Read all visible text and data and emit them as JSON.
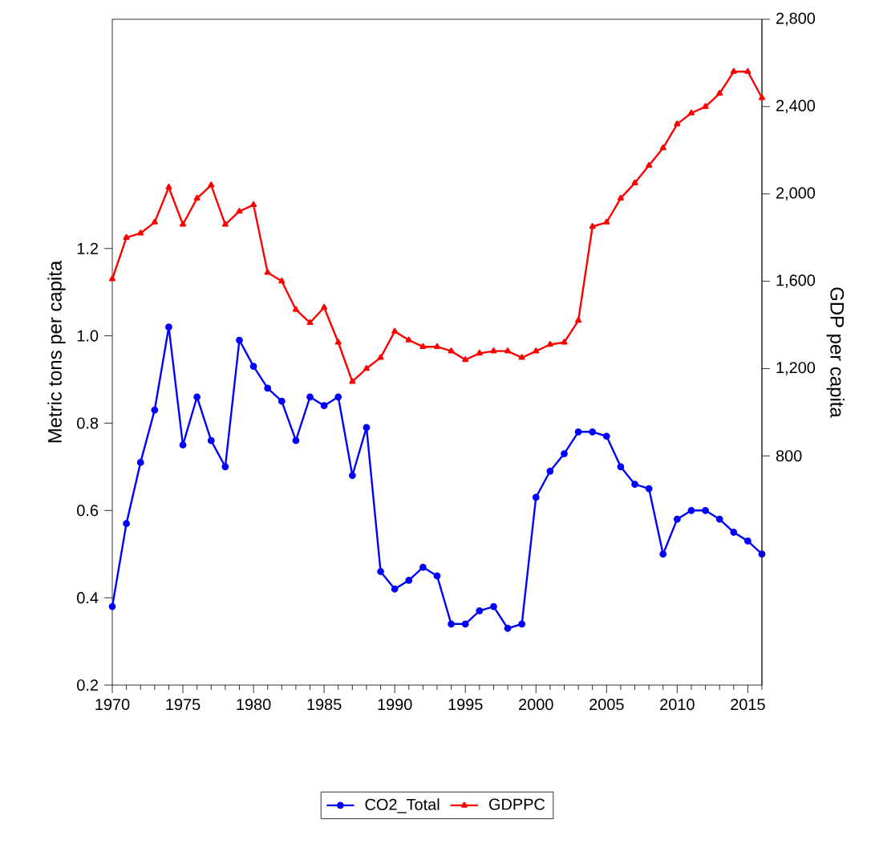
{
  "chart_data": {
    "type": "line",
    "ylabel": "Metric tons per capita",
    "y2label": "GDP per capita",
    "x": [
      1970,
      1971,
      1972,
      1973,
      1974,
      1975,
      1976,
      1977,
      1978,
      1979,
      1980,
      1981,
      1982,
      1983,
      1984,
      1985,
      1986,
      1987,
      1988,
      1989,
      1990,
      1991,
      1992,
      1993,
      1994,
      1995,
      1996,
      1997,
      1998,
      1999,
      2000,
      2001,
      2002,
      2003,
      2004,
      2005,
      2006,
      2007,
      2008,
      2009,
      2010,
      2011,
      2012,
      2013,
      2014,
      2015,
      2016
    ],
    "series": [
      {
        "name": "CO2_Total",
        "color": "#0000ff",
        "marker": "circle",
        "axis": "y",
        "values": [
          0.38,
          0.57,
          0.71,
          0.83,
          1.02,
          0.75,
          0.86,
          0.76,
          0.7,
          0.99,
          0.93,
          0.88,
          0.85,
          0.76,
          0.86,
          0.84,
          0.86,
          0.68,
          0.79,
          0.46,
          0.42,
          0.44,
          0.47,
          0.45,
          0.34,
          0.34,
          0.37,
          0.38,
          0.33,
          0.34,
          0.63,
          0.69,
          0.73,
          0.78,
          0.78,
          0.77,
          0.7,
          0.66,
          0.65,
          0.5,
          0.58,
          0.6,
          0.6,
          0.58,
          0.55,
          0.53,
          0.5
        ]
      },
      {
        "name": "GDPPC",
        "color": "#ff0000",
        "marker": "triangle",
        "axis": "y2",
        "values": [
          1610,
          1800,
          1820,
          1870,
          2030,
          1860,
          1980,
          2040,
          1860,
          1920,
          1950,
          1640,
          1600,
          1470,
          1410,
          1480,
          1320,
          1140,
          1200,
          1250,
          1370,
          1330,
          1300,
          1300,
          1280,
          1240,
          1270,
          1280,
          1280,
          1250,
          1280,
          1310,
          1320,
          1420,
          1850,
          1870,
          1980,
          2050,
          2130,
          2210,
          2320,
          2370,
          2400,
          2460,
          2560,
          2560,
          2440
        ]
      }
    ],
    "xlim": [
      1970,
      2016
    ],
    "xticks": [
      1970,
      {
        "value": 1971,
        "label": null
      },
      {
        "value": 1972,
        "label": null
      },
      {
        "value": 1973,
        "label": null
      },
      {
        "value": 1974,
        "label": null
      },
      1975,
      {
        "value": 1976,
        "label": null
      },
      {
        "value": 1977,
        "label": null
      },
      {
        "value": 1978,
        "label": null
      },
      {
        "value": 1979,
        "label": null
      },
      1980,
      {
        "value": 1981,
        "label": null
      },
      {
        "value": 1982,
        "label": null
      },
      {
        "value": 1983,
        "label": null
      },
      {
        "value": 1984,
        "label": null
      },
      1985,
      {
        "value": 1986,
        "label": null
      },
      {
        "value": 1987,
        "label": null
      },
      {
        "value": 1988,
        "label": null
      },
      {
        "value": 1989,
        "label": null
      },
      1990,
      {
        "value": 1991,
        "label": null
      },
      {
        "value": 1992,
        "label": null
      },
      {
        "value": 1993,
        "label": null
      },
      {
        "value": 1994,
        "label": null
      },
      1995,
      {
        "value": 1996,
        "label": null
      },
      {
        "value": 1997,
        "label": null
      },
      {
        "value": 1998,
        "label": null
      },
      {
        "value": 1999,
        "label": null
      },
      2000,
      {
        "value": 2001,
        "label": null
      },
      {
        "value": 2002,
        "label": null
      },
      {
        "value": 2003,
        "label": null
      },
      {
        "value": 2004,
        "label": null
      },
      2005,
      {
        "value": 2006,
        "label": null
      },
      {
        "value": 2007,
        "label": null
      },
      {
        "value": 2008,
        "label": null
      },
      {
        "value": 2009,
        "label": null
      },
      2010,
      {
        "value": 2011,
        "label": null
      },
      {
        "value": 2012,
        "label": null
      },
      {
        "value": 2013,
        "label": null
      },
      {
        "value": 2014,
        "label": null
      },
      2015,
      {
        "value": 2016,
        "label": null
      }
    ],
    "ylim": [
      0.2,
      1.725
    ],
    "yticks": [
      0.2,
      0.4,
      0.6,
      0.8,
      {
        "value": 1.0,
        "label": "1.0"
      },
      1.2
    ],
    "y2lim": [
      -250,
      2800
    ],
    "y2ticks": [
      {
        "value": 800,
        "label": "800"
      },
      {
        "value": 1200,
        "label": "1,200"
      },
      {
        "value": 1600,
        "label": "1,600"
      },
      {
        "value": 2000,
        "label": "2,000"
      },
      {
        "value": 2400,
        "label": "2,400"
      },
      {
        "value": 2800,
        "label": "2,800"
      }
    ],
    "legend": "bottom",
    "line_style": "solid"
  }
}
